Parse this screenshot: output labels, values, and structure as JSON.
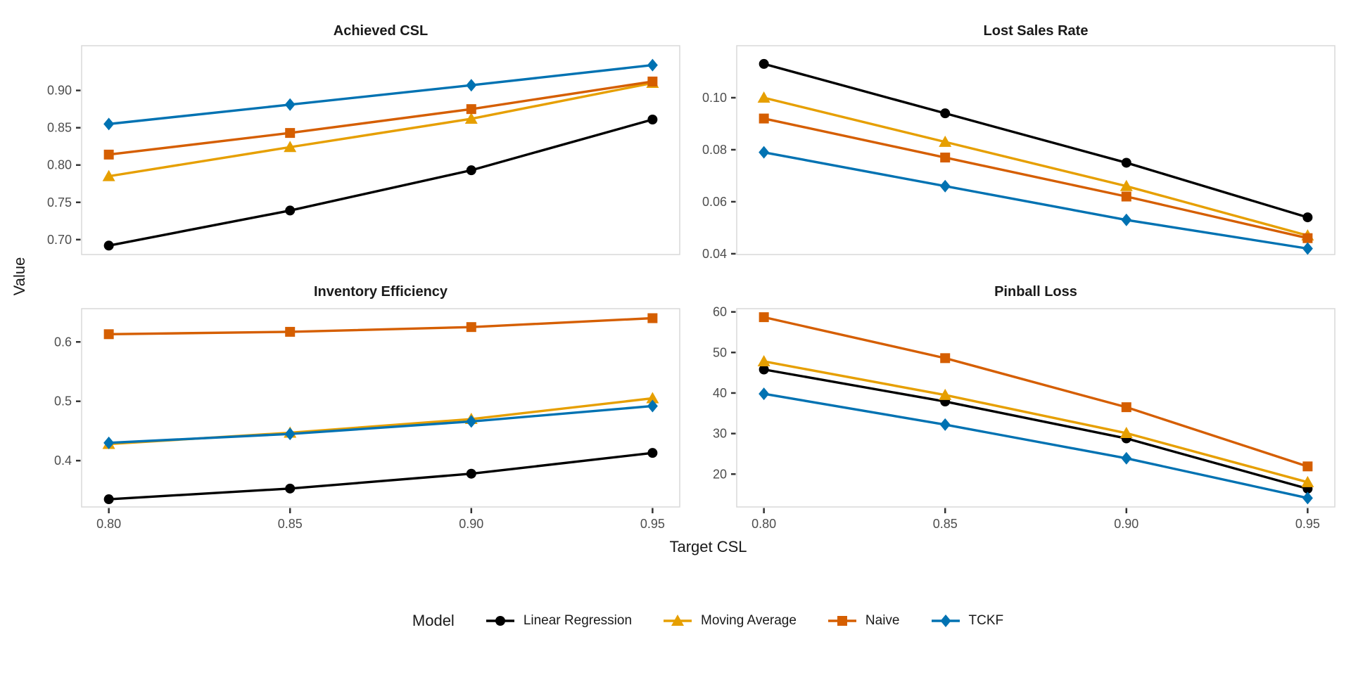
{
  "figure": {
    "x_axis_label": "Target CSL",
    "y_axis_label": "Value",
    "x_tick_values": [
      0.8,
      0.85,
      0.9,
      0.95
    ],
    "x_tick_labels": [
      "0.80",
      "0.85",
      "0.90",
      "0.95"
    ],
    "background_color": "#ffffff",
    "panel_border_color": "#d9d9d9",
    "tick_mark_color": "#333333",
    "tick_label_color": "#4d4d4d",
    "grid": "off",
    "legend_position": "bottom"
  },
  "chart_data": [
    {
      "type": "line",
      "title": "Achieved CSL",
      "x": [
        0.8,
        0.85,
        0.9,
        0.95
      ],
      "xlim": [
        0.7925,
        0.9575
      ],
      "ylim": [
        0.68,
        0.96
      ],
      "yticks": [
        {
          "value": 0.7,
          "label": "0.70"
        },
        {
          "value": 0.75,
          "label": "0.75"
        },
        {
          "value": 0.8,
          "label": "0.80"
        },
        {
          "value": 0.85,
          "label": "0.85"
        },
        {
          "value": 0.9,
          "label": "0.90"
        }
      ],
      "series": [
        {
          "name": "Linear Regression",
          "marker": "circle",
          "color": "#000000",
          "values": [
            0.692,
            0.739,
            0.793,
            0.861
          ]
        },
        {
          "name": "Moving Average",
          "marker": "triangle",
          "color": "#E69F00",
          "values": [
            0.785,
            0.824,
            0.862,
            0.91
          ]
        },
        {
          "name": "Naive",
          "marker": "square",
          "color": "#D55E00",
          "values": [
            0.814,
            0.843,
            0.875,
            0.912
          ]
        },
        {
          "name": "TCKF",
          "marker": "diamond",
          "color": "#0072B2",
          "values": [
            0.855,
            0.881,
            0.907,
            0.934
          ]
        }
      ]
    },
    {
      "type": "line",
      "title": "Lost Sales Rate",
      "x": [
        0.8,
        0.85,
        0.9,
        0.95
      ],
      "xlim": [
        0.7925,
        0.9575
      ],
      "ylim": [
        0.0397,
        0.12
      ],
      "yticks": [
        {
          "value": 0.04,
          "label": "0.04"
        },
        {
          "value": 0.06,
          "label": "0.06"
        },
        {
          "value": 0.08,
          "label": "0.08"
        },
        {
          "value": 0.1,
          "label": "0.10"
        }
      ],
      "series": [
        {
          "name": "Linear Regression",
          "marker": "circle",
          "color": "#000000",
          "values": [
            0.113,
            0.094,
            0.075,
            0.054
          ]
        },
        {
          "name": "Moving Average",
          "marker": "triangle",
          "color": "#E69F00",
          "values": [
            0.1,
            0.083,
            0.066,
            0.047
          ]
        },
        {
          "name": "Naive",
          "marker": "square",
          "color": "#D55E00",
          "values": [
            0.092,
            0.077,
            0.062,
            0.046
          ]
        },
        {
          "name": "TCKF",
          "marker": "diamond",
          "color": "#0072B2",
          "values": [
            0.079,
            0.066,
            0.053,
            0.042
          ]
        }
      ]
    },
    {
      "type": "line",
      "title": "Inventory Efficiency",
      "x": [
        0.8,
        0.85,
        0.9,
        0.95
      ],
      "xlim": [
        0.7925,
        0.9575
      ],
      "ylim": [
        0.322,
        0.656
      ],
      "yticks": [
        {
          "value": 0.4,
          "label": "0.4"
        },
        {
          "value": 0.5,
          "label": "0.5"
        },
        {
          "value": 0.6,
          "label": "0.6"
        }
      ],
      "series": [
        {
          "name": "Linear Regression",
          "marker": "circle",
          "color": "#000000",
          "values": [
            0.335,
            0.353,
            0.378,
            0.413
          ]
        },
        {
          "name": "Moving Average",
          "marker": "triangle",
          "color": "#E69F00",
          "values": [
            0.428,
            0.447,
            0.47,
            0.505
          ]
        },
        {
          "name": "Naive",
          "marker": "square",
          "color": "#D55E00",
          "values": [
            0.613,
            0.617,
            0.625,
            0.64
          ]
        },
        {
          "name": "TCKF",
          "marker": "diamond",
          "color": "#0072B2",
          "values": [
            0.43,
            0.445,
            0.466,
            0.492
          ]
        }
      ]
    },
    {
      "type": "line",
      "title": "Pinball Loss",
      "x": [
        0.8,
        0.85,
        0.9,
        0.95
      ],
      "xlim": [
        0.7925,
        0.9575
      ],
      "ylim": [
        11.9,
        60.8
      ],
      "yticks": [
        {
          "value": 20,
          "label": "20"
        },
        {
          "value": 30,
          "label": "30"
        },
        {
          "value": 40,
          "label": "40"
        },
        {
          "value": 50,
          "label": "50"
        },
        {
          "value": 60,
          "label": "60"
        }
      ],
      "series": [
        {
          "name": "Linear Regression",
          "marker": "circle",
          "color": "#000000",
          "values": [
            45.8,
            37.9,
            28.8,
            16.4
          ]
        },
        {
          "name": "Moving Average",
          "marker": "triangle",
          "color": "#E69F00",
          "values": [
            47.8,
            39.5,
            30.1,
            18.0
          ]
        },
        {
          "name": "Naive",
          "marker": "square",
          "color": "#D55E00",
          "values": [
            58.7,
            48.6,
            36.5,
            21.9
          ]
        },
        {
          "name": "TCKF",
          "marker": "diamond",
          "color": "#0072B2",
          "values": [
            39.8,
            32.2,
            23.9,
            14.1
          ]
        }
      ]
    }
  ],
  "legend": {
    "title": "Model",
    "entries": [
      {
        "label": "Linear Regression",
        "marker": "circle",
        "color": "#000000"
      },
      {
        "label": "Moving Average",
        "marker": "triangle",
        "color": "#E69F00"
      },
      {
        "label": "Naive",
        "marker": "square",
        "color": "#D55E00"
      },
      {
        "label": "TCKF",
        "marker": "diamond",
        "color": "#0072B2"
      }
    ]
  }
}
